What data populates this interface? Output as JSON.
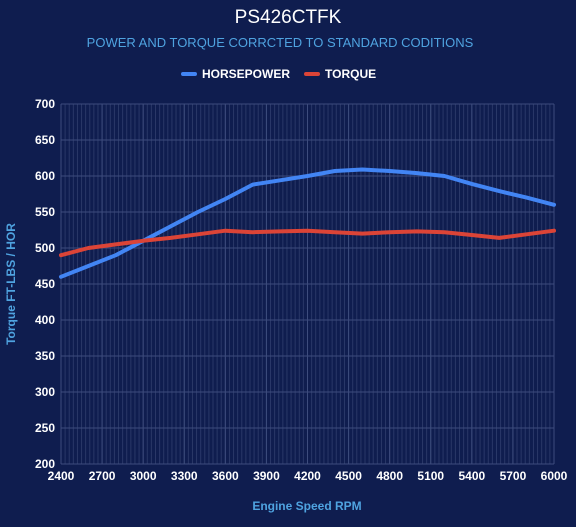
{
  "chart_data": {
    "type": "line",
    "title": "PS426CTFK",
    "subtitle": "POWER AND TORQUE CORRCTED TO STANDARD CODITIONS",
    "xlabel": "Engine Speed RPM",
    "ylabel": "Torque FT-LBS / HOR",
    "xlim": [
      2400,
      6000
    ],
    "ylim": [
      200,
      700
    ],
    "x_ticks": [
      2400,
      2700,
      3000,
      3300,
      3600,
      3900,
      4200,
      4500,
      4800,
      5100,
      5400,
      5700,
      6000
    ],
    "y_ticks": [
      200,
      250,
      300,
      350,
      400,
      450,
      500,
      550,
      600,
      650,
      700
    ],
    "grid": true,
    "legend_position": "top",
    "series": [
      {
        "name": "HORSEPOWER",
        "color": "#4285f4",
        "x": [
          2400,
          2600,
          2800,
          3000,
          3200,
          3400,
          3600,
          3800,
          4000,
          4200,
          4400,
          4600,
          4800,
          5000,
          5200,
          5400,
          5600,
          5800,
          6000
        ],
        "y": [
          460,
          475,
          490,
          510,
          530,
          550,
          568,
          588,
          594,
          600,
          607,
          609,
          607,
          604,
          600,
          589,
          579,
          570,
          560
        ]
      },
      {
        "name": "TORQUE",
        "color": "#db4437",
        "x": [
          2400,
          2600,
          2800,
          3000,
          3200,
          3400,
          3600,
          3800,
          4000,
          4200,
          4400,
          4600,
          4800,
          5000,
          5200,
          5400,
          5600,
          5800,
          6000
        ],
        "y": [
          490,
          500,
          505,
          510,
          514,
          519,
          524,
          522,
          523,
          524,
          522,
          520,
          522,
          523,
          522,
          518,
          514,
          519,
          524
        ]
      }
    ]
  },
  "colors": {
    "background": "#0f1d4f",
    "grid": "#3d4c7d",
    "minor_grid": "#2a3868",
    "tick_text": "#ffffff",
    "title": "#ffffff",
    "subtitle": "#4fa3e0",
    "axis_label": "#4fa3e0"
  }
}
